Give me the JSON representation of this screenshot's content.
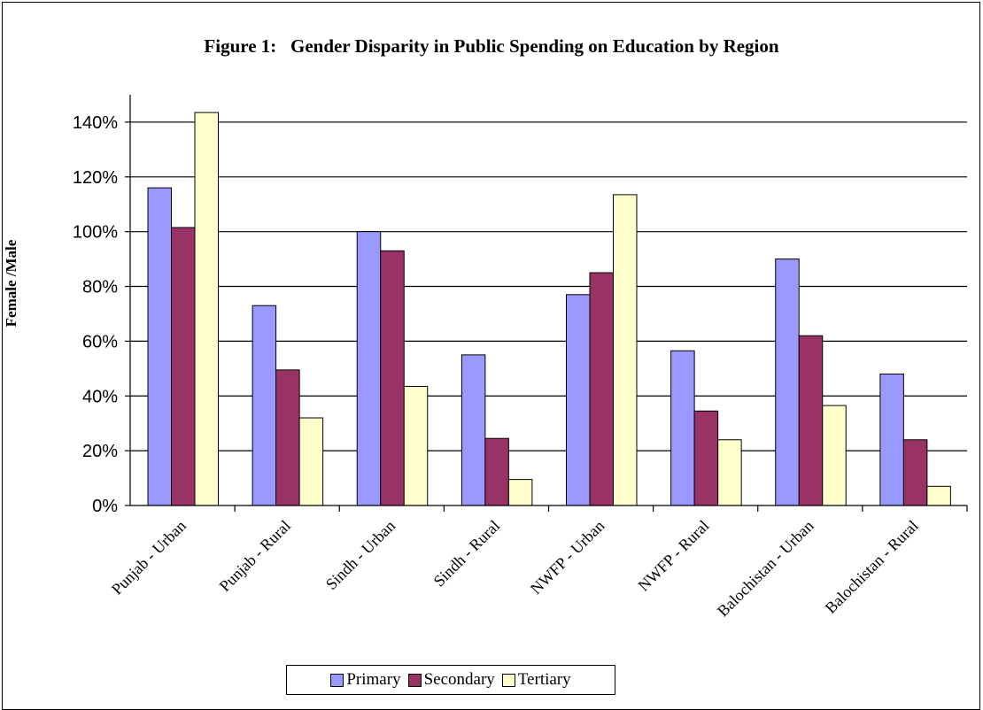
{
  "chart_data": {
    "type": "bar",
    "title": "Figure 1:   Gender Disparity in Public Spending on Education by Region",
    "ylabel": "Female /Male",
    "xlabel": "",
    "ylim": [
      0,
      1.5
    ],
    "yticks": [
      "0%",
      "20%",
      "40%",
      "60%",
      "80%",
      "100%",
      "120%",
      "140%"
    ],
    "grid": true,
    "legend": "bottom",
    "categories": [
      "Punjab - Urban",
      "Punjab - Rural",
      "Sindh  - Urban",
      "Sindh - Rural",
      "NWFP  - Urban",
      "NWFP - Rural",
      "Balochistan  - Urban",
      "Balochistan - Rural"
    ],
    "series": [
      {
        "name": "Primary",
        "color": "#9999ff",
        "values": [
          1.16,
          0.73,
          1.0,
          0.55,
          0.77,
          0.565,
          0.9,
          0.48
        ]
      },
      {
        "name": "Secondary",
        "color": "#993366",
        "values": [
          1.015,
          0.495,
          0.93,
          0.245,
          0.85,
          0.345,
          0.62,
          0.24
        ]
      },
      {
        "name": "Tertiary",
        "color": "#ffffcc",
        "values": [
          1.435,
          0.32,
          0.435,
          0.095,
          1.135,
          0.24,
          0.365,
          0.07
        ]
      }
    ]
  }
}
